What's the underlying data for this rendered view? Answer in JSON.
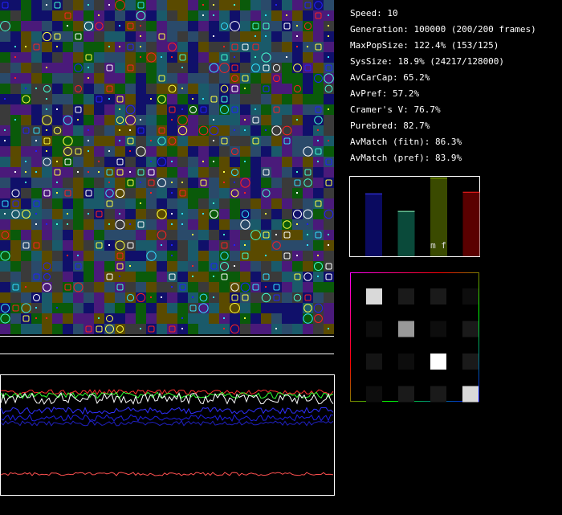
{
  "stats": [
    "Speed: 10",
    "Generation: 100000 (200/200 frames)",
    "MaxPopSize: 122.4% (153/125)",
    "SysSize: 18.9% (24217/128000)",
    "AvCarCap: 65.2%",
    "AvPref: 57.2%",
    "Cramer's V: 76.7%",
    "Purebred: 82.7%",
    "AvMatch (fitn): 86.3%",
    "AvMatch (pref): 83.9%"
  ],
  "bar_panel": {
    "label": "m f",
    "ylim": [
      0,
      1
    ],
    "bars": [
      {
        "fill": "#0a0a60",
        "color": "#3a3aff",
        "value": 0.79
      },
      {
        "fill": "#0a4a3a",
        "color": "#90ffc0",
        "value": 0.57
      },
      {
        "fill": "#3a4a00",
        "color": "#a0c800",
        "value": 0.99
      },
      {
        "fill": "#5a0000",
        "color": "#ff2020",
        "value": 0.81
      }
    ]
  },
  "preference_matrix": [
    [
      0.85,
      0.1,
      0.1,
      0.05
    ],
    [
      0.05,
      0.6,
      0.05,
      0.1
    ],
    [
      0.08,
      0.05,
      1.0,
      0.1
    ],
    [
      0.05,
      0.1,
      0.1,
      0.85
    ]
  ]
}
